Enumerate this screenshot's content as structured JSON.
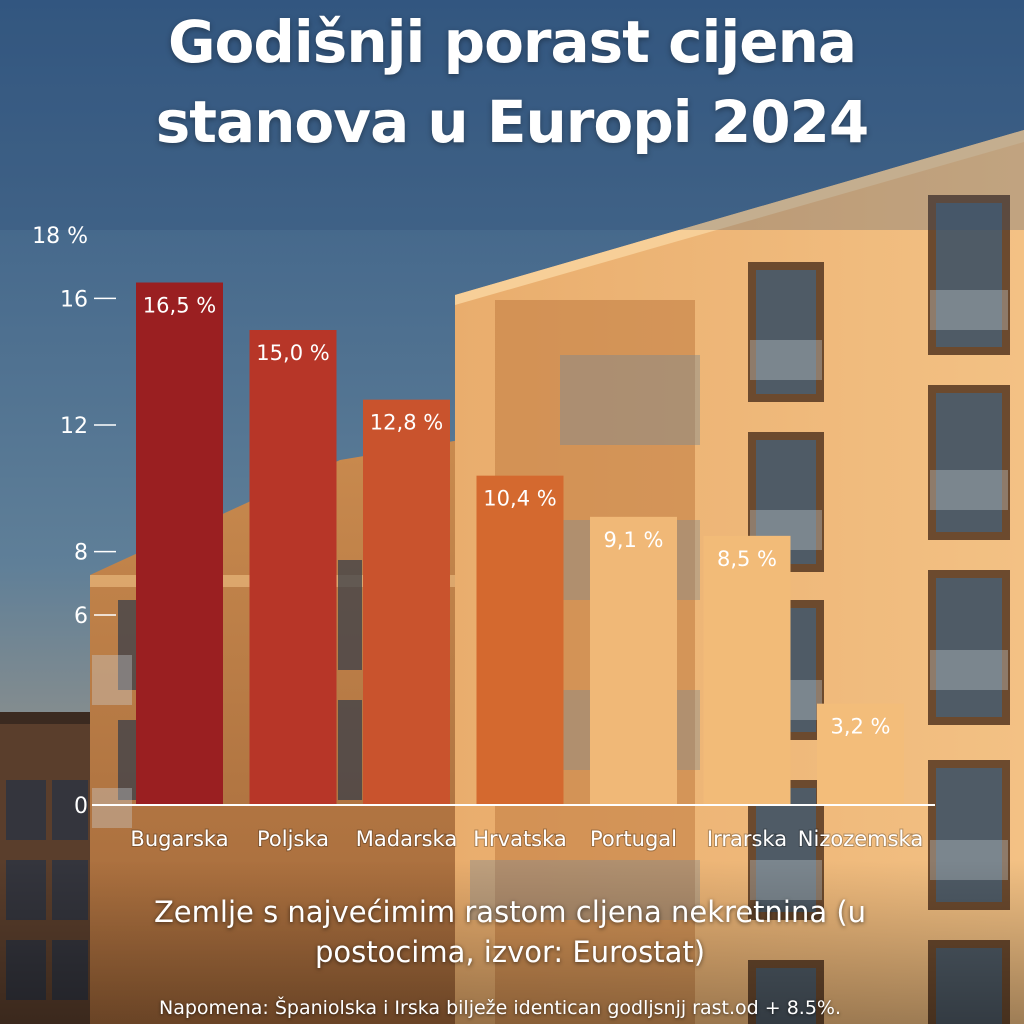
{
  "title_line1": "Godišnji porast cijena",
  "title_line2": "stanova u Europi 2024",
  "subtitle_line1": "Zemlje s najvećimim rastom cljena nekretnina (u",
  "subtitle_line2": "postocima, izvor: Eurostat)",
  "note": "Napomena: Španiolska i Irska bilježe identican godljsnjj rast.od + 8.5%.",
  "chart_data": {
    "type": "bar",
    "categories": [
      "Bugarska",
      "Poljska",
      "Madarska",
      "Hrvatska",
      "Portugal",
      "Irrarska",
      "Nizozemska"
    ],
    "values": [
      16.5,
      15.0,
      12.8,
      10.4,
      9.1,
      8.5,
      3.2
    ],
    "value_labels": [
      "16,5 %",
      "15,0 %",
      "12,8 %",
      "10,4 %",
      "9,1 %",
      "8,5 %",
      "3,2 %"
    ],
    "bar_colors": [
      "#9a1f21",
      "#b73628",
      "#c9532d",
      "#d4692f",
      "#f0b877",
      "#f2bb78",
      "#f3bd7a"
    ],
    "value_label_color": "#ffffff",
    "y_ticks": [
      {
        "value": 0,
        "label": "0"
      },
      {
        "value": 6,
        "label": "6"
      },
      {
        "value": 8,
        "label": "8"
      },
      {
        "value": 12,
        "label": "12"
      },
      {
        "value": 16,
        "label": "16"
      },
      {
        "value": 18,
        "label": "18 %"
      }
    ],
    "ylim": [
      0,
      18
    ],
    "xlabel": "",
    "ylabel": "",
    "grid": false
  }
}
